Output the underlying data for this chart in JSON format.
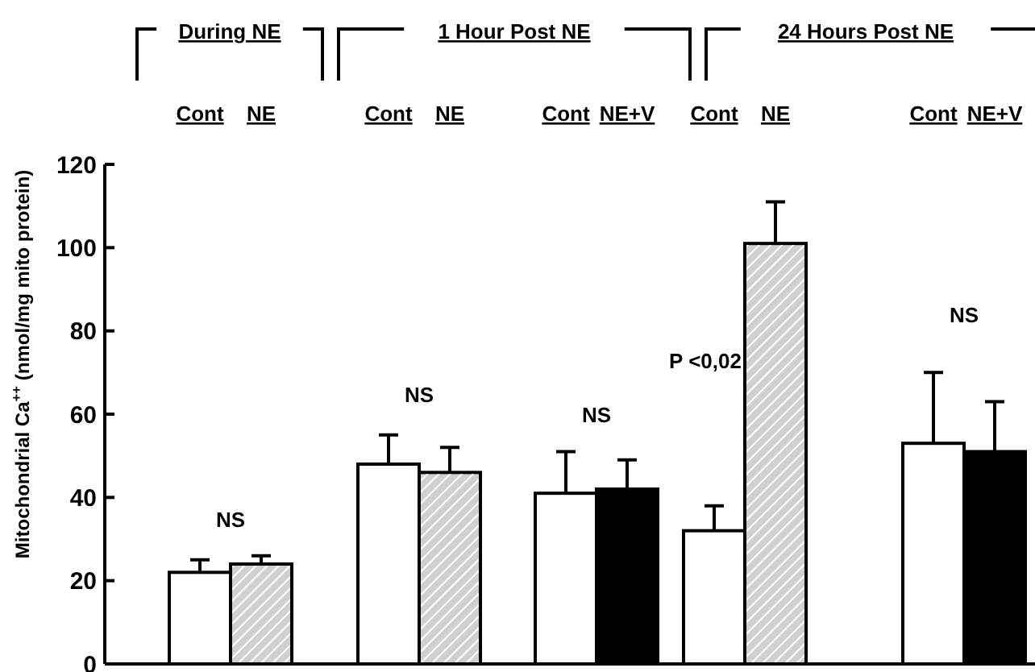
{
  "chart_data": {
    "type": "bar",
    "ylabel": "Mitochondrial Ca$^{++}$ (nmol/mg mito protein)",
    "categories": [
      "Cont",
      "NE",
      "Cont",
      "NE",
      "Cont",
      "NE+V",
      "Cont",
      "NE",
      "Cont",
      "NE+V"
    ],
    "values": [
      22,
      24,
      48,
      46,
      41,
      42,
      32,
      101,
      53,
      51
    ],
    "errors": [
      [
        22,
        25
      ],
      [
        24,
        26
      ],
      [
        48,
        55
      ],
      [
        46,
        52
      ],
      [
        41,
        51
      ],
      [
        42,
        49
      ],
      [
        32,
        38
      ],
      [
        101,
        111
      ],
      [
        53,
        70
      ],
      [
        51,
        63
      ]
    ],
    "colors": [
      "#ffffff",
      "#d0d0d0",
      "#ffffff",
      "#d0d0d0",
      "#ffffff",
      "#000000",
      "#ffffff",
      "#d0d0d0",
      "#ffffff",
      "#000000"
    ],
    "ylim": [
      0,
      120
    ],
    "yticks": [
      0,
      20,
      40,
      60,
      80,
      100,
      120
    ],
    "grid": false,
    "annotations": [
      "During NE",
      "1 Hour Post NE",
      "24 Hours Post NE",
      "NS",
      "NS",
      "NS",
      "P <0,02",
      "NS"
    ]
  }
}
